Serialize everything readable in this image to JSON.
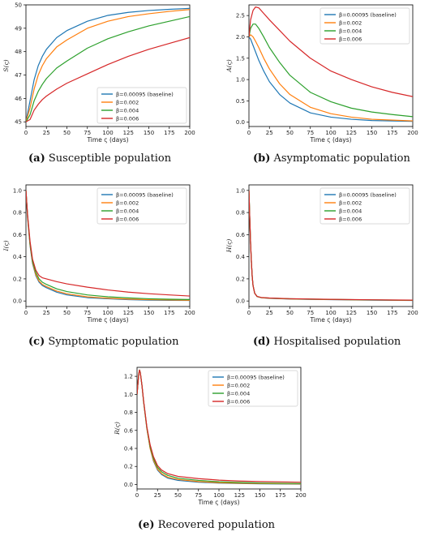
{
  "figures": [
    {
      "key": "a",
      "caption_tag": "(a)",
      "caption_text": " Susceptible population"
    },
    {
      "key": "b",
      "caption_tag": "(b)",
      "caption_text": " Asymptomatic population"
    },
    {
      "key": "c",
      "caption_tag": "(c)",
      "caption_text": " Symptomatic population"
    },
    {
      "key": "d",
      "caption_tag": "(d)",
      "caption_text": " Hospitalised population"
    },
    {
      "key": "e",
      "caption_tag": "(e)",
      "caption_text": " Recovered population"
    }
  ],
  "colors": {
    "s1": "#1f77b4",
    "s2": "#ff7f0e",
    "s3": "#2ca02c",
    "s4": "#d62728"
  },
  "chart_data": [
    {
      "type": "line",
      "panel": "a",
      "xlabel": "Time ς (days)",
      "ylabel": "S(ς)",
      "xlim": [
        0,
        200
      ],
      "ylim": [
        44.8,
        50.0
      ],
      "xticks": [
        0,
        25,
        50,
        75,
        100,
        125,
        150,
        175,
        200
      ],
      "yticks": [
        45,
        46,
        47,
        48,
        49,
        50
      ],
      "legend_position": "lower-right",
      "x": [
        0,
        5,
        10,
        15,
        20,
        25,
        37.5,
        50,
        75,
        100,
        125,
        150,
        175,
        200
      ],
      "series": [
        {
          "name": "β=0.00095 (baseline)",
          "color": "#1f77b4",
          "values": [
            45.0,
            45.9,
            46.8,
            47.4,
            47.8,
            48.1,
            48.6,
            48.9,
            49.3,
            49.55,
            49.68,
            49.76,
            49.81,
            49.85
          ]
        },
        {
          "name": "β=0.002",
          "color": "#ff7f0e",
          "values": [
            45.0,
            45.6,
            46.4,
            47.0,
            47.4,
            47.7,
            48.2,
            48.5,
            49.0,
            49.3,
            49.5,
            49.62,
            49.72,
            49.8
          ]
        },
        {
          "name": "β=0.004",
          "color": "#2ca02c",
          "values": [
            45.0,
            45.3,
            45.9,
            46.3,
            46.6,
            46.85,
            47.3,
            47.6,
            48.15,
            48.55,
            48.85,
            49.1,
            49.3,
            49.5
          ]
        },
        {
          "name": "β=0.006",
          "color": "#d62728",
          "values": [
            45.0,
            45.1,
            45.5,
            45.75,
            45.95,
            46.1,
            46.4,
            46.65,
            47.05,
            47.45,
            47.8,
            48.1,
            48.35,
            48.6
          ]
        }
      ]
    },
    {
      "type": "line",
      "panel": "b",
      "xlabel": "Time ς (days)",
      "ylabel": "A(ς)",
      "xlim": [
        0,
        200
      ],
      "ylim": [
        -0.1,
        2.75
      ],
      "xticks": [
        0,
        25,
        50,
        75,
        100,
        125,
        150,
        175,
        200
      ],
      "yticks": [
        0.0,
        0.5,
        1.0,
        1.5,
        2.0,
        2.5
      ],
      "legend_position": "upper-right",
      "x": [
        0,
        2,
        5,
        8,
        12,
        18,
        25,
        37.5,
        50,
        75,
        100,
        125,
        150,
        175,
        200
      ],
      "series": [
        {
          "name": "β=0.00095 (baseline)",
          "color": "#1f77b4",
          "values": [
            2.0,
            1.95,
            1.8,
            1.65,
            1.45,
            1.2,
            0.95,
            0.65,
            0.45,
            0.22,
            0.12,
            0.07,
            0.04,
            0.03,
            0.02
          ]
        },
        {
          "name": "β=0.002",
          "color": "#ff7f0e",
          "values": [
            2.0,
            2.05,
            2.0,
            1.9,
            1.75,
            1.5,
            1.25,
            0.9,
            0.65,
            0.35,
            0.2,
            0.12,
            0.07,
            0.05,
            0.03
          ]
        },
        {
          "name": "β=0.004",
          "color": "#2ca02c",
          "values": [
            2.0,
            2.2,
            2.3,
            2.3,
            2.2,
            2.0,
            1.75,
            1.4,
            1.1,
            0.7,
            0.48,
            0.33,
            0.24,
            0.18,
            0.13
          ]
        },
        {
          "name": "β=0.006",
          "color": "#d62728",
          "values": [
            2.0,
            2.4,
            2.62,
            2.7,
            2.68,
            2.55,
            2.4,
            2.15,
            1.9,
            1.5,
            1.2,
            1.0,
            0.83,
            0.7,
            0.6
          ]
        }
      ]
    },
    {
      "type": "line",
      "panel": "c",
      "xlabel": "Time ς (days)",
      "ylabel": "I(ς)",
      "xlim": [
        0,
        200
      ],
      "ylim": [
        -0.05,
        1.05
      ],
      "xticks": [
        0,
        25,
        50,
        75,
        100,
        125,
        150,
        175,
        200
      ],
      "yticks": [
        0.0,
        0.2,
        0.4,
        0.6,
        0.8,
        1.0
      ],
      "legend_position": "upper-right",
      "x": [
        0,
        2,
        5,
        8,
        12,
        16,
        20,
        25,
        37.5,
        50,
        75,
        100,
        125,
        150,
        175,
        200
      ],
      "series": [
        {
          "name": "β=0.00095 (baseline)",
          "color": "#1f77b4",
          "values": [
            1.0,
            0.75,
            0.5,
            0.34,
            0.23,
            0.17,
            0.14,
            0.12,
            0.08,
            0.055,
            0.03,
            0.02,
            0.012,
            0.008,
            0.006,
            0.005
          ]
        },
        {
          "name": "β=0.002",
          "color": "#ff7f0e",
          "values": [
            1.0,
            0.76,
            0.51,
            0.35,
            0.24,
            0.18,
            0.15,
            0.13,
            0.09,
            0.065,
            0.037,
            0.025,
            0.017,
            0.012,
            0.009,
            0.007
          ]
        },
        {
          "name": "β=0.004",
          "color": "#2ca02c",
          "values": [
            1.0,
            0.77,
            0.52,
            0.36,
            0.26,
            0.2,
            0.17,
            0.15,
            0.11,
            0.085,
            0.055,
            0.038,
            0.028,
            0.02,
            0.016,
            0.013
          ]
        },
        {
          "name": "β=0.006",
          "color": "#d62728",
          "values": [
            1.0,
            0.78,
            0.54,
            0.38,
            0.28,
            0.23,
            0.21,
            0.2,
            0.175,
            0.155,
            0.125,
            0.1,
            0.08,
            0.066,
            0.055,
            0.045
          ]
        }
      ]
    },
    {
      "type": "line",
      "panel": "d",
      "xlabel": "Time ς (days)",
      "ylabel": "H(ς)",
      "xlim": [
        0,
        200
      ],
      "ylim": [
        -0.05,
        1.05
      ],
      "xticks": [
        0,
        25,
        50,
        75,
        100,
        125,
        150,
        175,
        200
      ],
      "yticks": [
        0.0,
        0.2,
        0.4,
        0.6,
        0.8,
        1.0
      ],
      "legend_position": "upper-right",
      "x": [
        0,
        1,
        2,
        3,
        4,
        5,
        7,
        10,
        15,
        25,
        50,
        100,
        150,
        200
      ],
      "series": [
        {
          "name": "β=0.00095 (baseline)",
          "color": "#1f77b4",
          "values": [
            1.0,
            0.75,
            0.52,
            0.35,
            0.22,
            0.14,
            0.07,
            0.04,
            0.03,
            0.024,
            0.018,
            0.012,
            0.008,
            0.005
          ]
        },
        {
          "name": "β=0.002",
          "color": "#ff7f0e",
          "values": [
            1.0,
            0.75,
            0.52,
            0.35,
            0.22,
            0.14,
            0.07,
            0.04,
            0.03,
            0.025,
            0.019,
            0.013,
            0.009,
            0.006
          ]
        },
        {
          "name": "β=0.004",
          "color": "#2ca02c",
          "values": [
            1.0,
            0.75,
            0.52,
            0.35,
            0.22,
            0.14,
            0.07,
            0.04,
            0.031,
            0.026,
            0.02,
            0.014,
            0.01,
            0.007
          ]
        },
        {
          "name": "β=0.006",
          "color": "#d62728",
          "values": [
            1.0,
            0.75,
            0.52,
            0.35,
            0.22,
            0.14,
            0.07,
            0.041,
            0.032,
            0.027,
            0.021,
            0.015,
            0.011,
            0.008
          ]
        }
      ]
    },
    {
      "type": "line",
      "panel": "e",
      "xlabel": "Time ς (days)",
      "ylabel": "R(ς)",
      "xlim": [
        0,
        200
      ],
      "ylim": [
        -0.05,
        1.3
      ],
      "xticks": [
        0,
        25,
        50,
        75,
        100,
        125,
        150,
        175,
        200
      ],
      "yticks": [
        0.0,
        0.2,
        0.4,
        0.6,
        0.8,
        1.0,
        1.2
      ],
      "legend_position": "upper-right",
      "x": [
        0,
        2,
        3,
        4,
        6,
        8,
        12,
        16,
        20,
        25,
        30,
        37.5,
        50,
        75,
        100,
        125,
        150,
        200
      ],
      "series": [
        {
          "name": "β=0.00095 (baseline)",
          "color": "#1f77b4",
          "values": [
            1.0,
            1.22,
            1.27,
            1.24,
            1.1,
            0.92,
            0.62,
            0.4,
            0.26,
            0.16,
            0.11,
            0.07,
            0.045,
            0.025,
            0.015,
            0.01,
            0.007,
            0.004
          ]
        },
        {
          "name": "β=0.002",
          "color": "#ff7f0e",
          "values": [
            1.0,
            1.22,
            1.27,
            1.24,
            1.1,
            0.92,
            0.62,
            0.4,
            0.27,
            0.17,
            0.12,
            0.08,
            0.055,
            0.032,
            0.02,
            0.014,
            0.01,
            0.006
          ]
        },
        {
          "name": "β=0.004",
          "color": "#2ca02c",
          "values": [
            1.0,
            1.22,
            1.27,
            1.24,
            1.1,
            0.92,
            0.63,
            0.42,
            0.29,
            0.19,
            0.14,
            0.1,
            0.07,
            0.045,
            0.03,
            0.022,
            0.016,
            0.01
          ]
        },
        {
          "name": "β=0.006",
          "color": "#d62728",
          "values": [
            1.0,
            1.22,
            1.27,
            1.24,
            1.1,
            0.93,
            0.64,
            0.44,
            0.31,
            0.21,
            0.16,
            0.12,
            0.09,
            0.065,
            0.048,
            0.038,
            0.032,
            0.025
          ]
        }
      ]
    }
  ]
}
